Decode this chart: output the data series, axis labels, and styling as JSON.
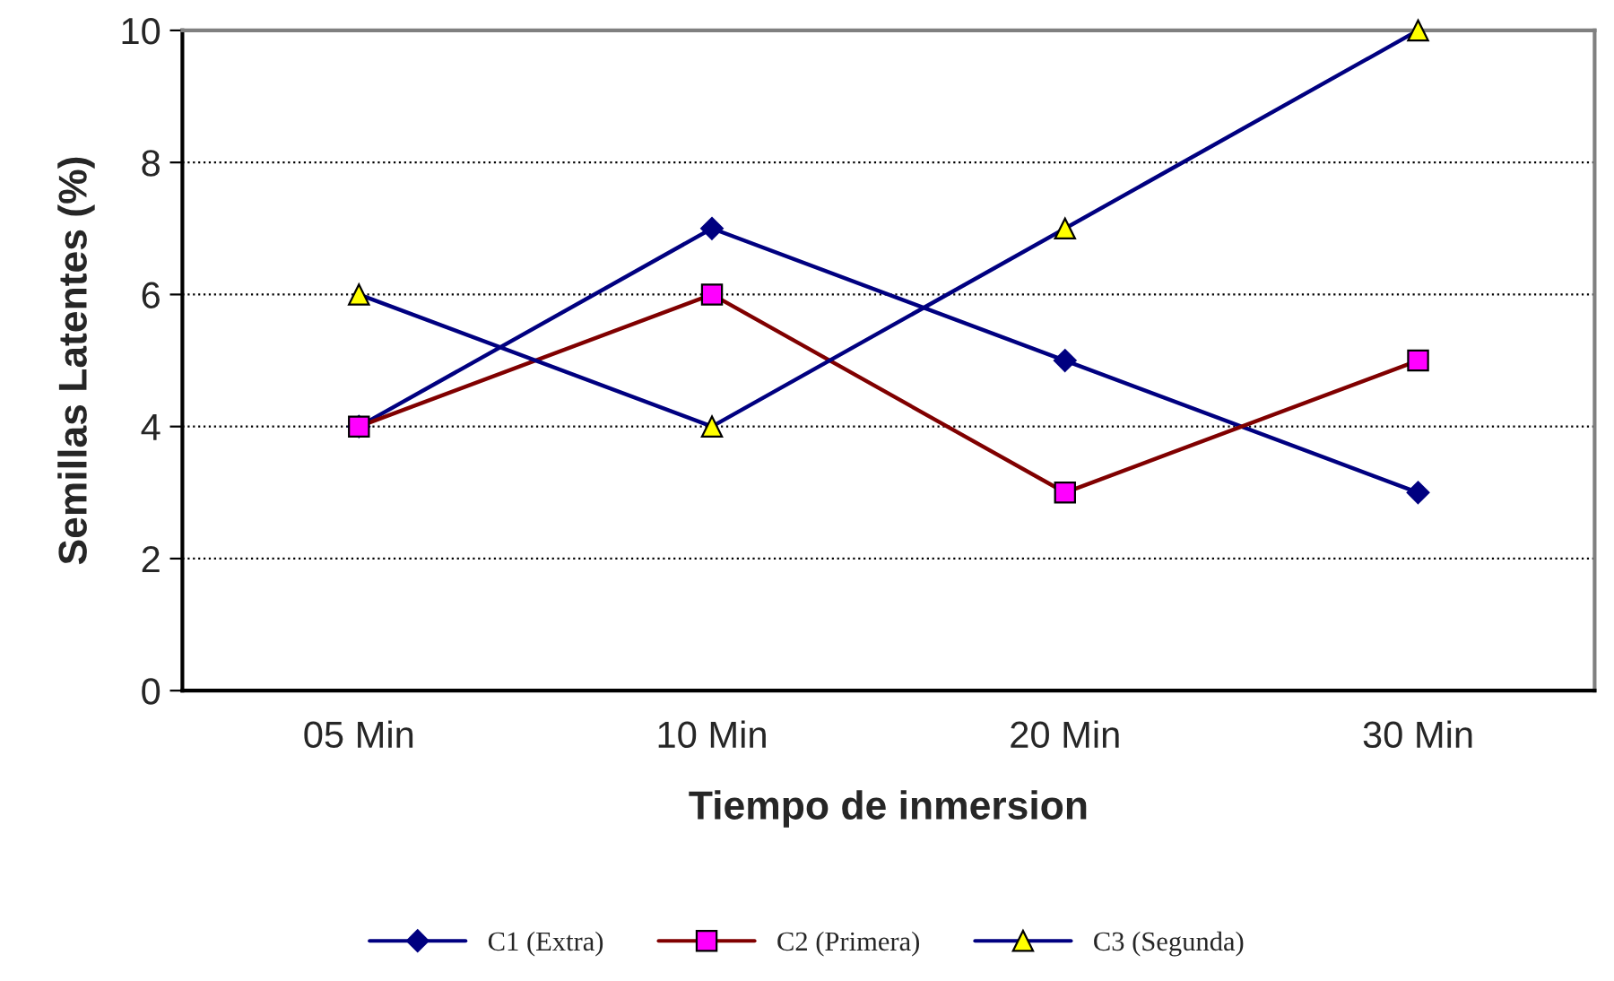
{
  "chart_data": {
    "type": "line",
    "xlabel": "Tiempo de inmersion",
    "ylabel": "Semillas Latentes (%)",
    "categories": [
      "05 Min",
      "10 Min",
      "20 Min",
      "30 Min"
    ],
    "series": [
      {
        "name": "C1 (Extra)",
        "color": "#000080",
        "colors": [
          "#000080",
          "#000080",
          "#000080",
          "#000080"
        ],
        "marker": "diamond",
        "values": [
          4,
          7,
          5,
          3
        ]
      },
      {
        "name": "C2 (Primera)",
        "color": "#800000",
        "colors": [
          "#ff00ff",
          "#ff00ff",
          "#ff00ff",
          "#ff00ff"
        ],
        "marker": "square",
        "values": [
          4,
          6,
          3,
          5
        ]
      },
      {
        "name": "C3 (Segunda)",
        "color": "#000080",
        "colors": [
          "#ffff00",
          "#ffff00",
          "#ffff00",
          "#ffff00"
        ],
        "marker": "triangle",
        "values": [
          6,
          4,
          7,
          10
        ]
      }
    ],
    "ylim": [
      0,
      10
    ],
    "yticks": [
      0,
      2,
      4,
      6,
      8,
      10
    ],
    "grid": "y",
    "legend": "bottom",
    "line_style": "solid"
  }
}
